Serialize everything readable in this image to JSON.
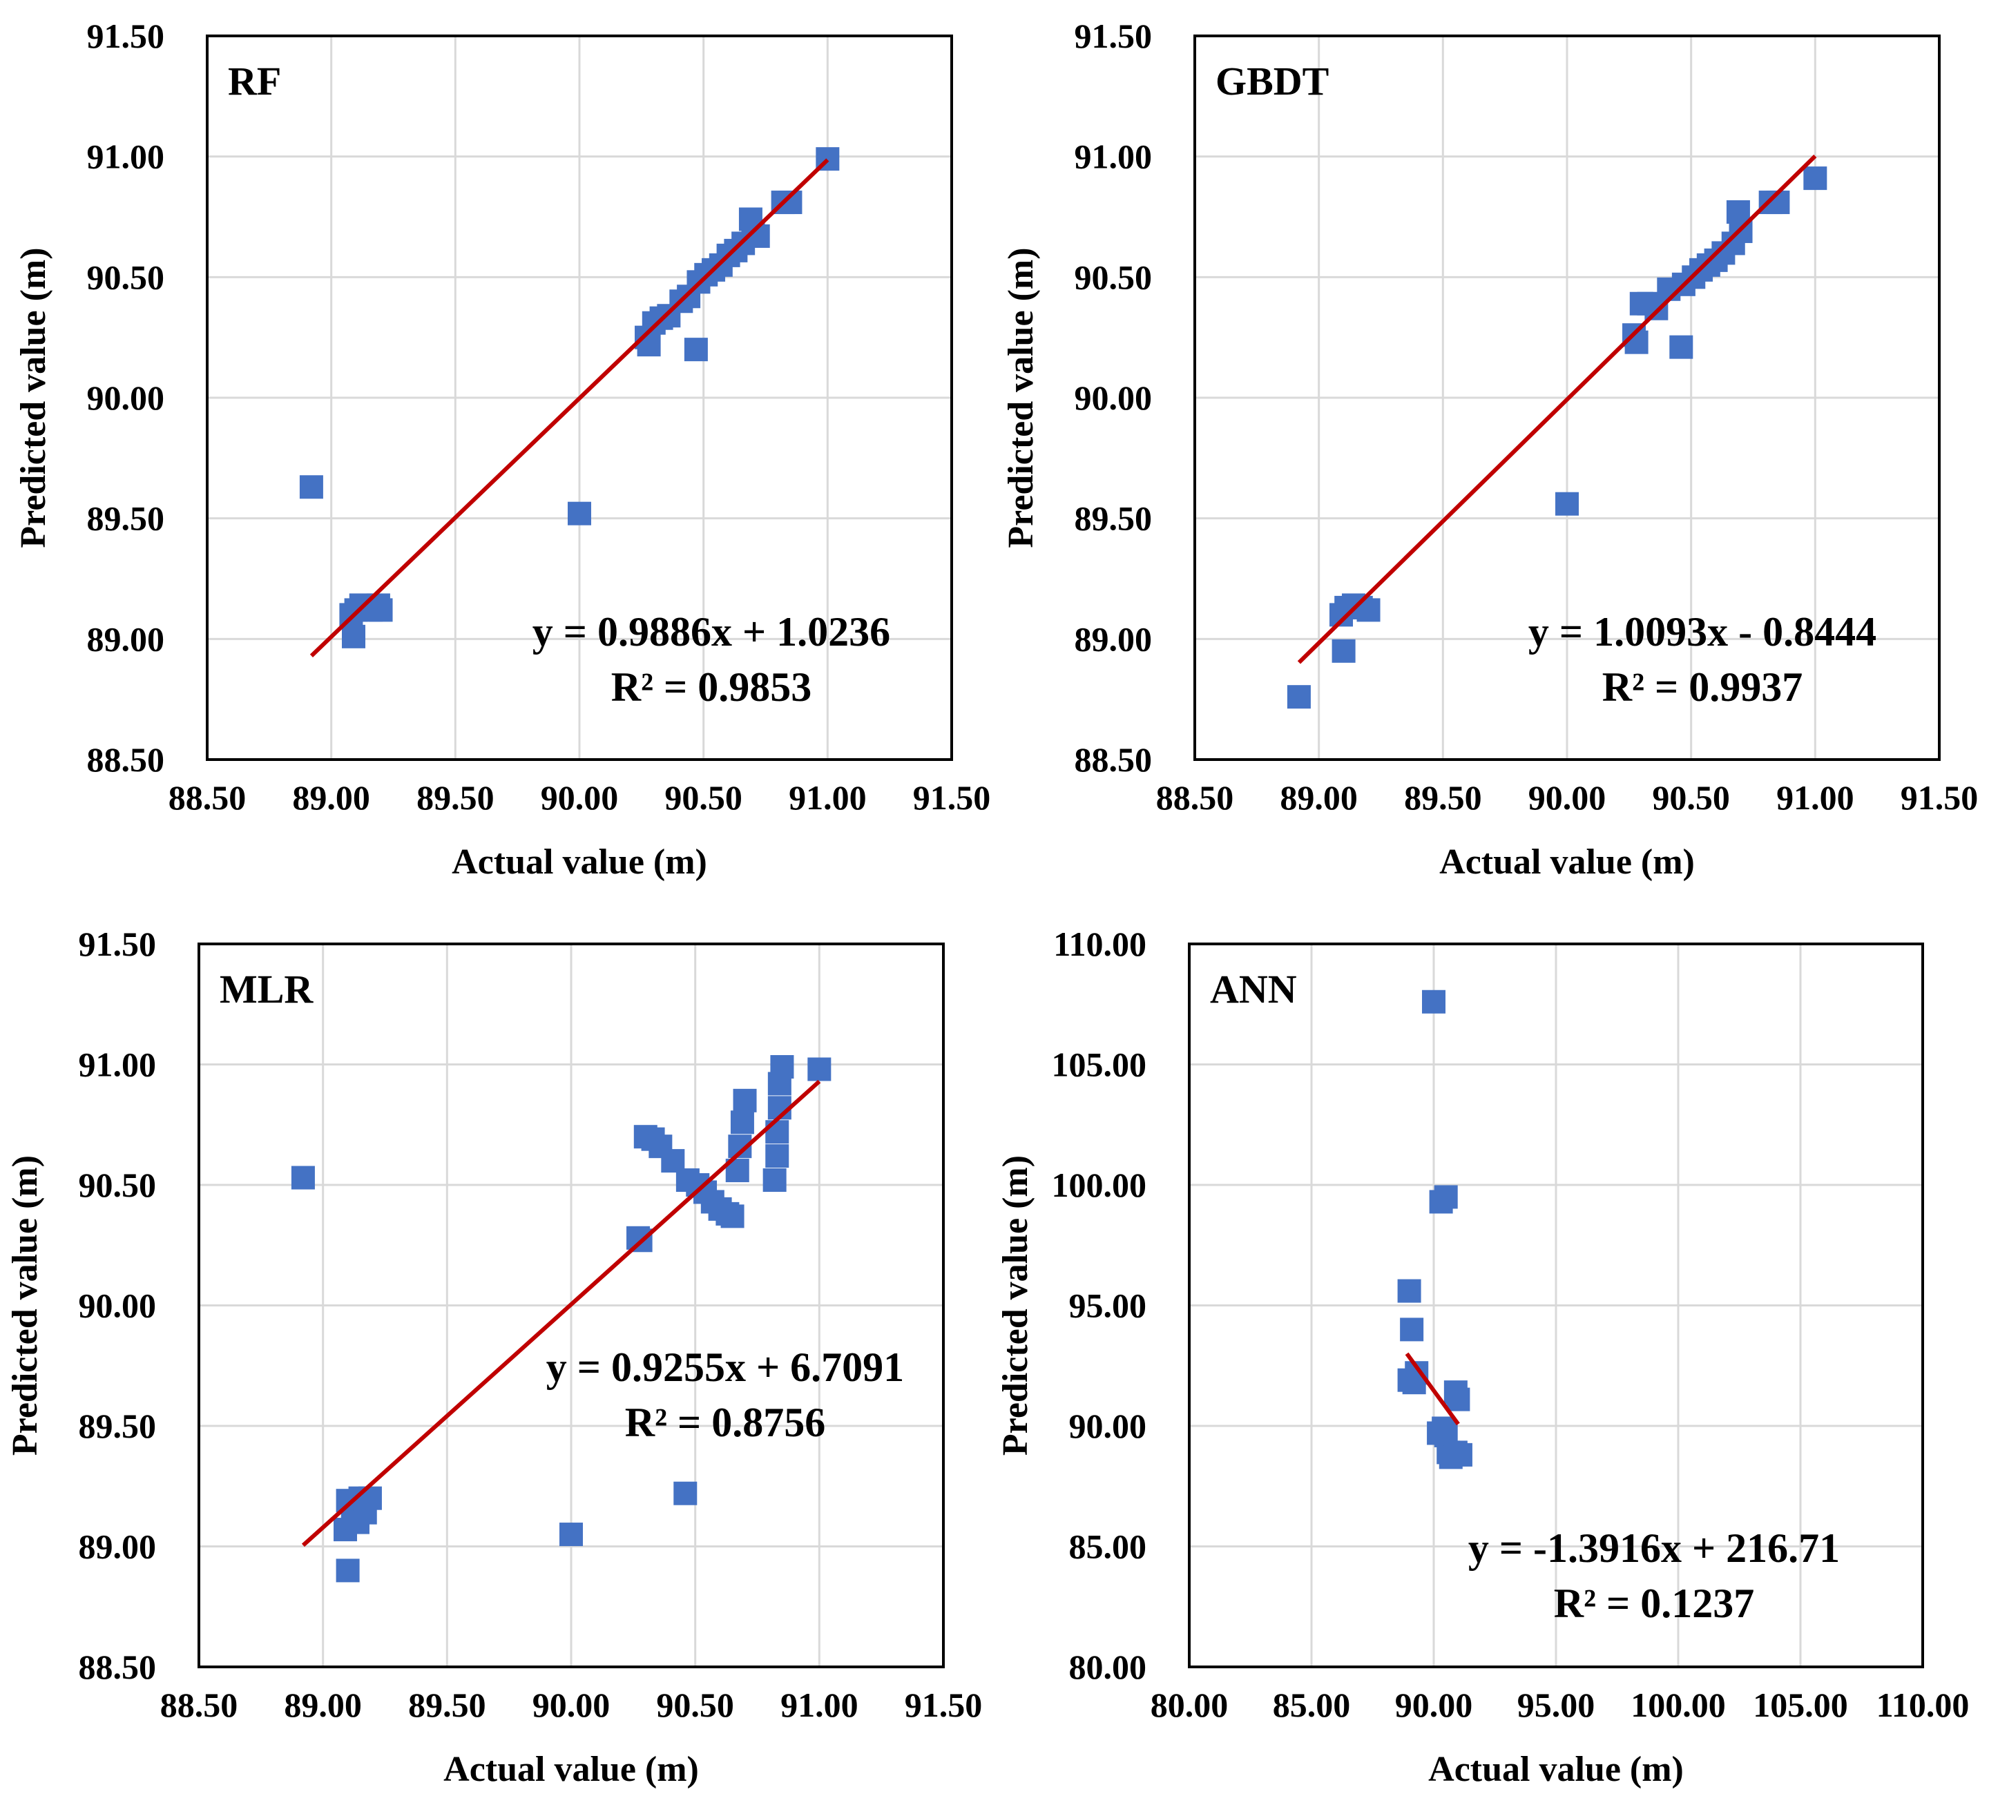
{
  "chart_data": [
    {
      "type": "scatter",
      "title": "RF",
      "xlabel": "Actual value (m)",
      "ylabel": "Predicted value (m)",
      "xlim": [
        88.5,
        91.5
      ],
      "ylim": [
        88.5,
        91.5
      ],
      "xticks": [
        "88.50",
        "89.00",
        "89.50",
        "90.00",
        "90.50",
        "91.00",
        "91.50"
      ],
      "yticks": [
        "88.50",
        "89.00",
        "89.50",
        "90.00",
        "90.50",
        "91.00",
        "91.50"
      ],
      "grid": true,
      "equation": "y = 0.9886x + 1.0236",
      "r2": "R² = 0.9853",
      "trendline": {
        "x": [
          88.92,
          91.0
        ]
      },
      "points": [
        {
          "x": 88.92,
          "y": 89.63
        },
        {
          "x": 89.09,
          "y": 89.01
        },
        {
          "x": 89.08,
          "y": 89.1
        },
        {
          "x": 89.1,
          "y": 89.12
        },
        {
          "x": 89.12,
          "y": 89.14
        },
        {
          "x": 89.14,
          "y": 89.13
        },
        {
          "x": 89.16,
          "y": 89.12
        },
        {
          "x": 89.19,
          "y": 89.14
        },
        {
          "x": 89.2,
          "y": 89.12
        },
        {
          "x": 90.0,
          "y": 89.52
        },
        {
          "x": 90.27,
          "y": 90.25
        },
        {
          "x": 90.28,
          "y": 90.22
        },
        {
          "x": 90.3,
          "y": 90.31
        },
        {
          "x": 90.33,
          "y": 90.33
        },
        {
          "x": 90.36,
          "y": 90.34
        },
        {
          "x": 90.41,
          "y": 90.4
        },
        {
          "x": 90.44,
          "y": 90.42
        },
        {
          "x": 90.47,
          "y": 90.2
        },
        {
          "x": 90.48,
          "y": 90.48
        },
        {
          "x": 90.51,
          "y": 90.51
        },
        {
          "x": 90.54,
          "y": 90.53
        },
        {
          "x": 90.57,
          "y": 90.55
        },
        {
          "x": 90.6,
          "y": 90.59
        },
        {
          "x": 90.63,
          "y": 90.61
        },
        {
          "x": 90.66,
          "y": 90.64
        },
        {
          "x": 90.69,
          "y": 90.74
        },
        {
          "x": 90.7,
          "y": 90.69
        },
        {
          "x": 90.72,
          "y": 90.67
        },
        {
          "x": 90.82,
          "y": 90.81
        },
        {
          "x": 90.85,
          "y": 90.81
        },
        {
          "x": 91.0,
          "y": 90.99
        }
      ]
    },
    {
      "type": "scatter",
      "title": "GBDT",
      "xlabel": "Actual value (m)",
      "ylabel": "Predicted value (m)",
      "xlim": [
        88.5,
        91.5
      ],
      "ylim": [
        88.5,
        91.5
      ],
      "xticks": [
        "88.50",
        "89.00",
        "89.50",
        "90.00",
        "90.50",
        "91.00",
        "91.50"
      ],
      "yticks": [
        "88.50",
        "89.00",
        "89.50",
        "90.00",
        "90.50",
        "91.00",
        "91.50"
      ],
      "grid": true,
      "equation": "y = 1.0093x - 0.8444",
      "r2": "R² = 0.9937",
      "trendline": {
        "x": [
          88.92,
          91.0
        ]
      },
      "points": [
        {
          "x": 88.92,
          "y": 88.76
        },
        {
          "x": 89.1,
          "y": 88.95
        },
        {
          "x": 89.09,
          "y": 89.1
        },
        {
          "x": 89.11,
          "y": 89.13
        },
        {
          "x": 89.14,
          "y": 89.14
        },
        {
          "x": 89.17,
          "y": 89.13
        },
        {
          "x": 89.2,
          "y": 89.12
        },
        {
          "x": 90.0,
          "y": 89.56
        },
        {
          "x": 90.27,
          "y": 90.26
        },
        {
          "x": 90.28,
          "y": 90.23
        },
        {
          "x": 90.3,
          "y": 90.39
        },
        {
          "x": 90.33,
          "y": 90.39
        },
        {
          "x": 90.36,
          "y": 90.37
        },
        {
          "x": 90.41,
          "y": 90.45
        },
        {
          "x": 90.46,
          "y": 90.21
        },
        {
          "x": 90.47,
          "y": 90.47
        },
        {
          "x": 90.51,
          "y": 90.5
        },
        {
          "x": 90.54,
          "y": 90.53
        },
        {
          "x": 90.57,
          "y": 90.55
        },
        {
          "x": 90.6,
          "y": 90.57
        },
        {
          "x": 90.63,
          "y": 90.6
        },
        {
          "x": 90.67,
          "y": 90.64
        },
        {
          "x": 90.69,
          "y": 90.77
        },
        {
          "x": 90.7,
          "y": 90.69
        },
        {
          "x": 90.82,
          "y": 90.81
        },
        {
          "x": 90.85,
          "y": 90.81
        },
        {
          "x": 91.0,
          "y": 90.91
        }
      ]
    },
    {
      "type": "scatter",
      "title": "MLR",
      "xlabel": "Actual value (m)",
      "ylabel": "Predicted value (m)",
      "xlim": [
        88.5,
        91.5
      ],
      "ylim": [
        88.5,
        91.5
      ],
      "xticks": [
        "88.50",
        "89.00",
        "89.50",
        "90.00",
        "90.50",
        "91.00",
        "91.50"
      ],
      "yticks": [
        "88.50",
        "89.00",
        "89.50",
        "90.00",
        "90.50",
        "91.00",
        "91.50"
      ],
      "grid": true,
      "equation": "y = 0.9255x + 6.7091",
      "r2": "R² = 0.8756",
      "trendline": {
        "x": [
          88.92,
          91.0
        ]
      },
      "points": [
        {
          "x": 88.92,
          "y": 90.53
        },
        {
          "x": 89.1,
          "y": 88.9
        },
        {
          "x": 89.09,
          "y": 89.07
        },
        {
          "x": 89.1,
          "y": 89.19
        },
        {
          "x": 89.12,
          "y": 89.12
        },
        {
          "x": 89.14,
          "y": 89.1
        },
        {
          "x": 89.15,
          "y": 89.2
        },
        {
          "x": 89.17,
          "y": 89.14
        },
        {
          "x": 89.19,
          "y": 89.2
        },
        {
          "x": 90.0,
          "y": 89.05
        },
        {
          "x": 90.27,
          "y": 90.28
        },
        {
          "x": 90.28,
          "y": 90.27
        },
        {
          "x": 90.3,
          "y": 90.7
        },
        {
          "x": 90.33,
          "y": 90.69
        },
        {
          "x": 90.36,
          "y": 90.66
        },
        {
          "x": 90.41,
          "y": 90.6
        },
        {
          "x": 90.46,
          "y": 89.22
        },
        {
          "x": 90.47,
          "y": 90.52
        },
        {
          "x": 90.51,
          "y": 90.5
        },
        {
          "x": 90.54,
          "y": 90.47
        },
        {
          "x": 90.57,
          "y": 90.43
        },
        {
          "x": 90.6,
          "y": 90.4
        },
        {
          "x": 90.63,
          "y": 90.38
        },
        {
          "x": 90.65,
          "y": 90.37
        },
        {
          "x": 90.67,
          "y": 90.56
        },
        {
          "x": 90.68,
          "y": 90.66
        },
        {
          "x": 90.69,
          "y": 90.76
        },
        {
          "x": 90.7,
          "y": 90.85
        },
        {
          "x": 90.82,
          "y": 90.52
        },
        {
          "x": 90.83,
          "y": 90.62
        },
        {
          "x": 90.83,
          "y": 90.72
        },
        {
          "x": 90.84,
          "y": 90.82
        },
        {
          "x": 90.84,
          "y": 90.92
        },
        {
          "x": 90.85,
          "y": 90.99
        },
        {
          "x": 91.0,
          "y": 90.98
        }
      ]
    },
    {
      "type": "scatter",
      "title": "ANN",
      "xlabel": "Actual value (m)",
      "ylabel": "Predicted value (m)",
      "xlim": [
        80,
        110
      ],
      "ylim": [
        80,
        110
      ],
      "xticks": [
        "80.00",
        "85.00",
        "90.00",
        "95.00",
        "100.00",
        "105.00",
        "110.00"
      ],
      "yticks": [
        "80.00",
        "85.00",
        "90.00",
        "95.00",
        "100.00",
        "105.00",
        "110.00"
      ],
      "grid": true,
      "equation": "y = -1.3916x + 216.71",
      "r2": "R² = 0.1237",
      "trendline": {
        "x": [
          88.9,
          91.0
        ]
      },
      "points": [
        {
          "x": 90.0,
          "y": 107.6
        },
        {
          "x": 90.3,
          "y": 99.3
        },
        {
          "x": 90.5,
          "y": 99.5
        },
        {
          "x": 89.0,
          "y": 95.6
        },
        {
          "x": 89.1,
          "y": 94.0
        },
        {
          "x": 89.0,
          "y": 91.9
        },
        {
          "x": 89.2,
          "y": 91.8
        },
        {
          "x": 89.3,
          "y": 92.2
        },
        {
          "x": 90.9,
          "y": 91.4
        },
        {
          "x": 91.0,
          "y": 91.1
        },
        {
          "x": 90.2,
          "y": 89.7
        },
        {
          "x": 90.4,
          "y": 89.9
        },
        {
          "x": 90.5,
          "y": 89.6
        },
        {
          "x": 90.6,
          "y": 88.9
        },
        {
          "x": 90.7,
          "y": 88.7
        },
        {
          "x": 90.9,
          "y": 88.9
        },
        {
          "x": 91.1,
          "y": 88.8
        }
      ]
    }
  ]
}
